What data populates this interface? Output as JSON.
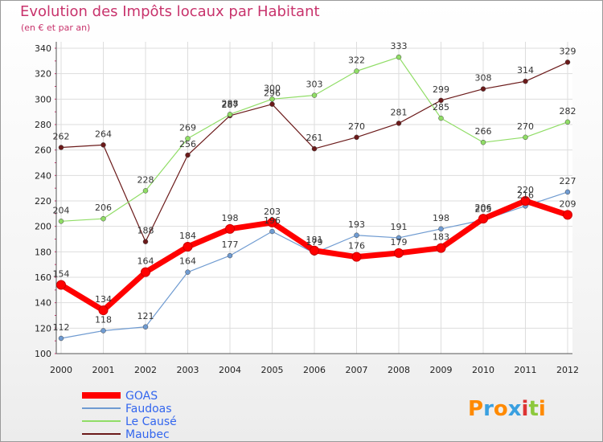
{
  "title": "Evolution des Impôts locaux par Habitant",
  "subtitle": "(en € et par an)",
  "logo_text": "Proxiti",
  "chart_data": {
    "type": "line",
    "x": [
      "2000",
      "2001",
      "2002",
      "2003",
      "2004",
      "2005",
      "2006",
      "2007",
      "2008",
      "2009",
      "2010",
      "2011",
      "2012"
    ],
    "ylim": [
      100,
      340
    ],
    "yticks": [
      100,
      120,
      140,
      160,
      180,
      200,
      220,
      240,
      260,
      280,
      300,
      320,
      340
    ],
    "grid": true,
    "legend_position": "bottom-left",
    "series": [
      {
        "name": "GOAS",
        "color": "#ff0000",
        "values": [
          154,
          134,
          164,
          184,
          198,
          203,
          181,
          176,
          179,
          183,
          206,
          220,
          209
        ]
      },
      {
        "name": "Faudoas",
        "color": "#6f9bd1",
        "values": [
          112,
          118,
          121,
          164,
          177,
          196,
          179,
          193,
          191,
          198,
          205,
          216,
          227
        ]
      },
      {
        "name": "Le Causé",
        "color": "#90dd66",
        "values": [
          204,
          206,
          228,
          269,
          288,
          300,
          303,
          322,
          333,
          285,
          266,
          270,
          282
        ]
      },
      {
        "name": "Maubec",
        "color": "#6b1a1a",
        "values": [
          262,
          264,
          188,
          256,
          287,
          296,
          261,
          270,
          281,
          299,
          308,
          314,
          329
        ]
      }
    ]
  }
}
